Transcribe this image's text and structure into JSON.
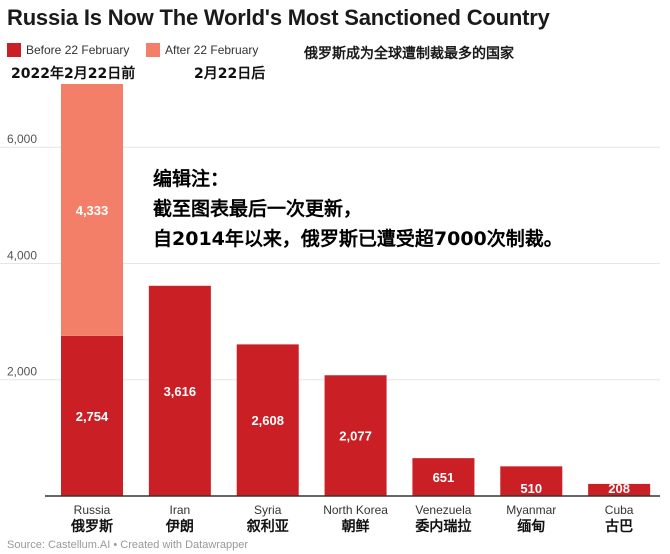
{
  "header": {
    "title": "Russia Is Now The World's Most Sanctioned Country",
    "cn_title": "俄罗斯成为全球遭制裁最多的国家"
  },
  "legend": {
    "before_label": "Before 22 February",
    "after_label": "After 22 February",
    "before_cn": "2022年2月22日前",
    "after_cn": "2月22日后"
  },
  "note": {
    "line1": "编辑注：",
    "line2": "截至图表最后一次更新，",
    "line3": "自2014年以来，俄罗斯已遭受超7000次制裁。"
  },
  "footer": {
    "source": "Source: Castellum.AI • Created with Datawrapper"
  },
  "colors": {
    "before": "#c91f25",
    "after": "#f47f68",
    "grid": "#e6e6e6",
    "axis": "#333333",
    "tick_label": "#555555",
    "value_label": "#ffffff"
  },
  "chart_data": {
    "type": "bar",
    "stacked": true,
    "categories": [
      "Russia",
      "Iran",
      "Syria",
      "North Korea",
      "Venezuela",
      "Myanmar",
      "Cuba"
    ],
    "categories_cn": [
      "俄罗斯",
      "伊朗",
      "叙利亚",
      "朝鲜",
      "委内瑞拉",
      "缅甸",
      "古巴"
    ],
    "series": [
      {
        "name": "Before 22 February",
        "values": [
          2754,
          3616,
          2608,
          2077,
          651,
          510,
          208
        ]
      },
      {
        "name": "After 22 February",
        "values": [
          4333,
          0,
          0,
          0,
          0,
          0,
          0
        ]
      }
    ],
    "value_labels": {
      "before": [
        "2,754",
        "3,616",
        "2,608",
        "2,077",
        "651",
        "510",
        "208"
      ],
      "after": [
        "4,333",
        "",
        "",
        "",
        "",
        "",
        ""
      ]
    },
    "y_ticks": [
      2000,
      4000,
      6000
    ],
    "y_tick_labels": [
      "2,000",
      "4,000",
      "6,000"
    ],
    "ylim": [
      0,
      7087
    ],
    "grid": true,
    "legend_position": "top-left"
  }
}
